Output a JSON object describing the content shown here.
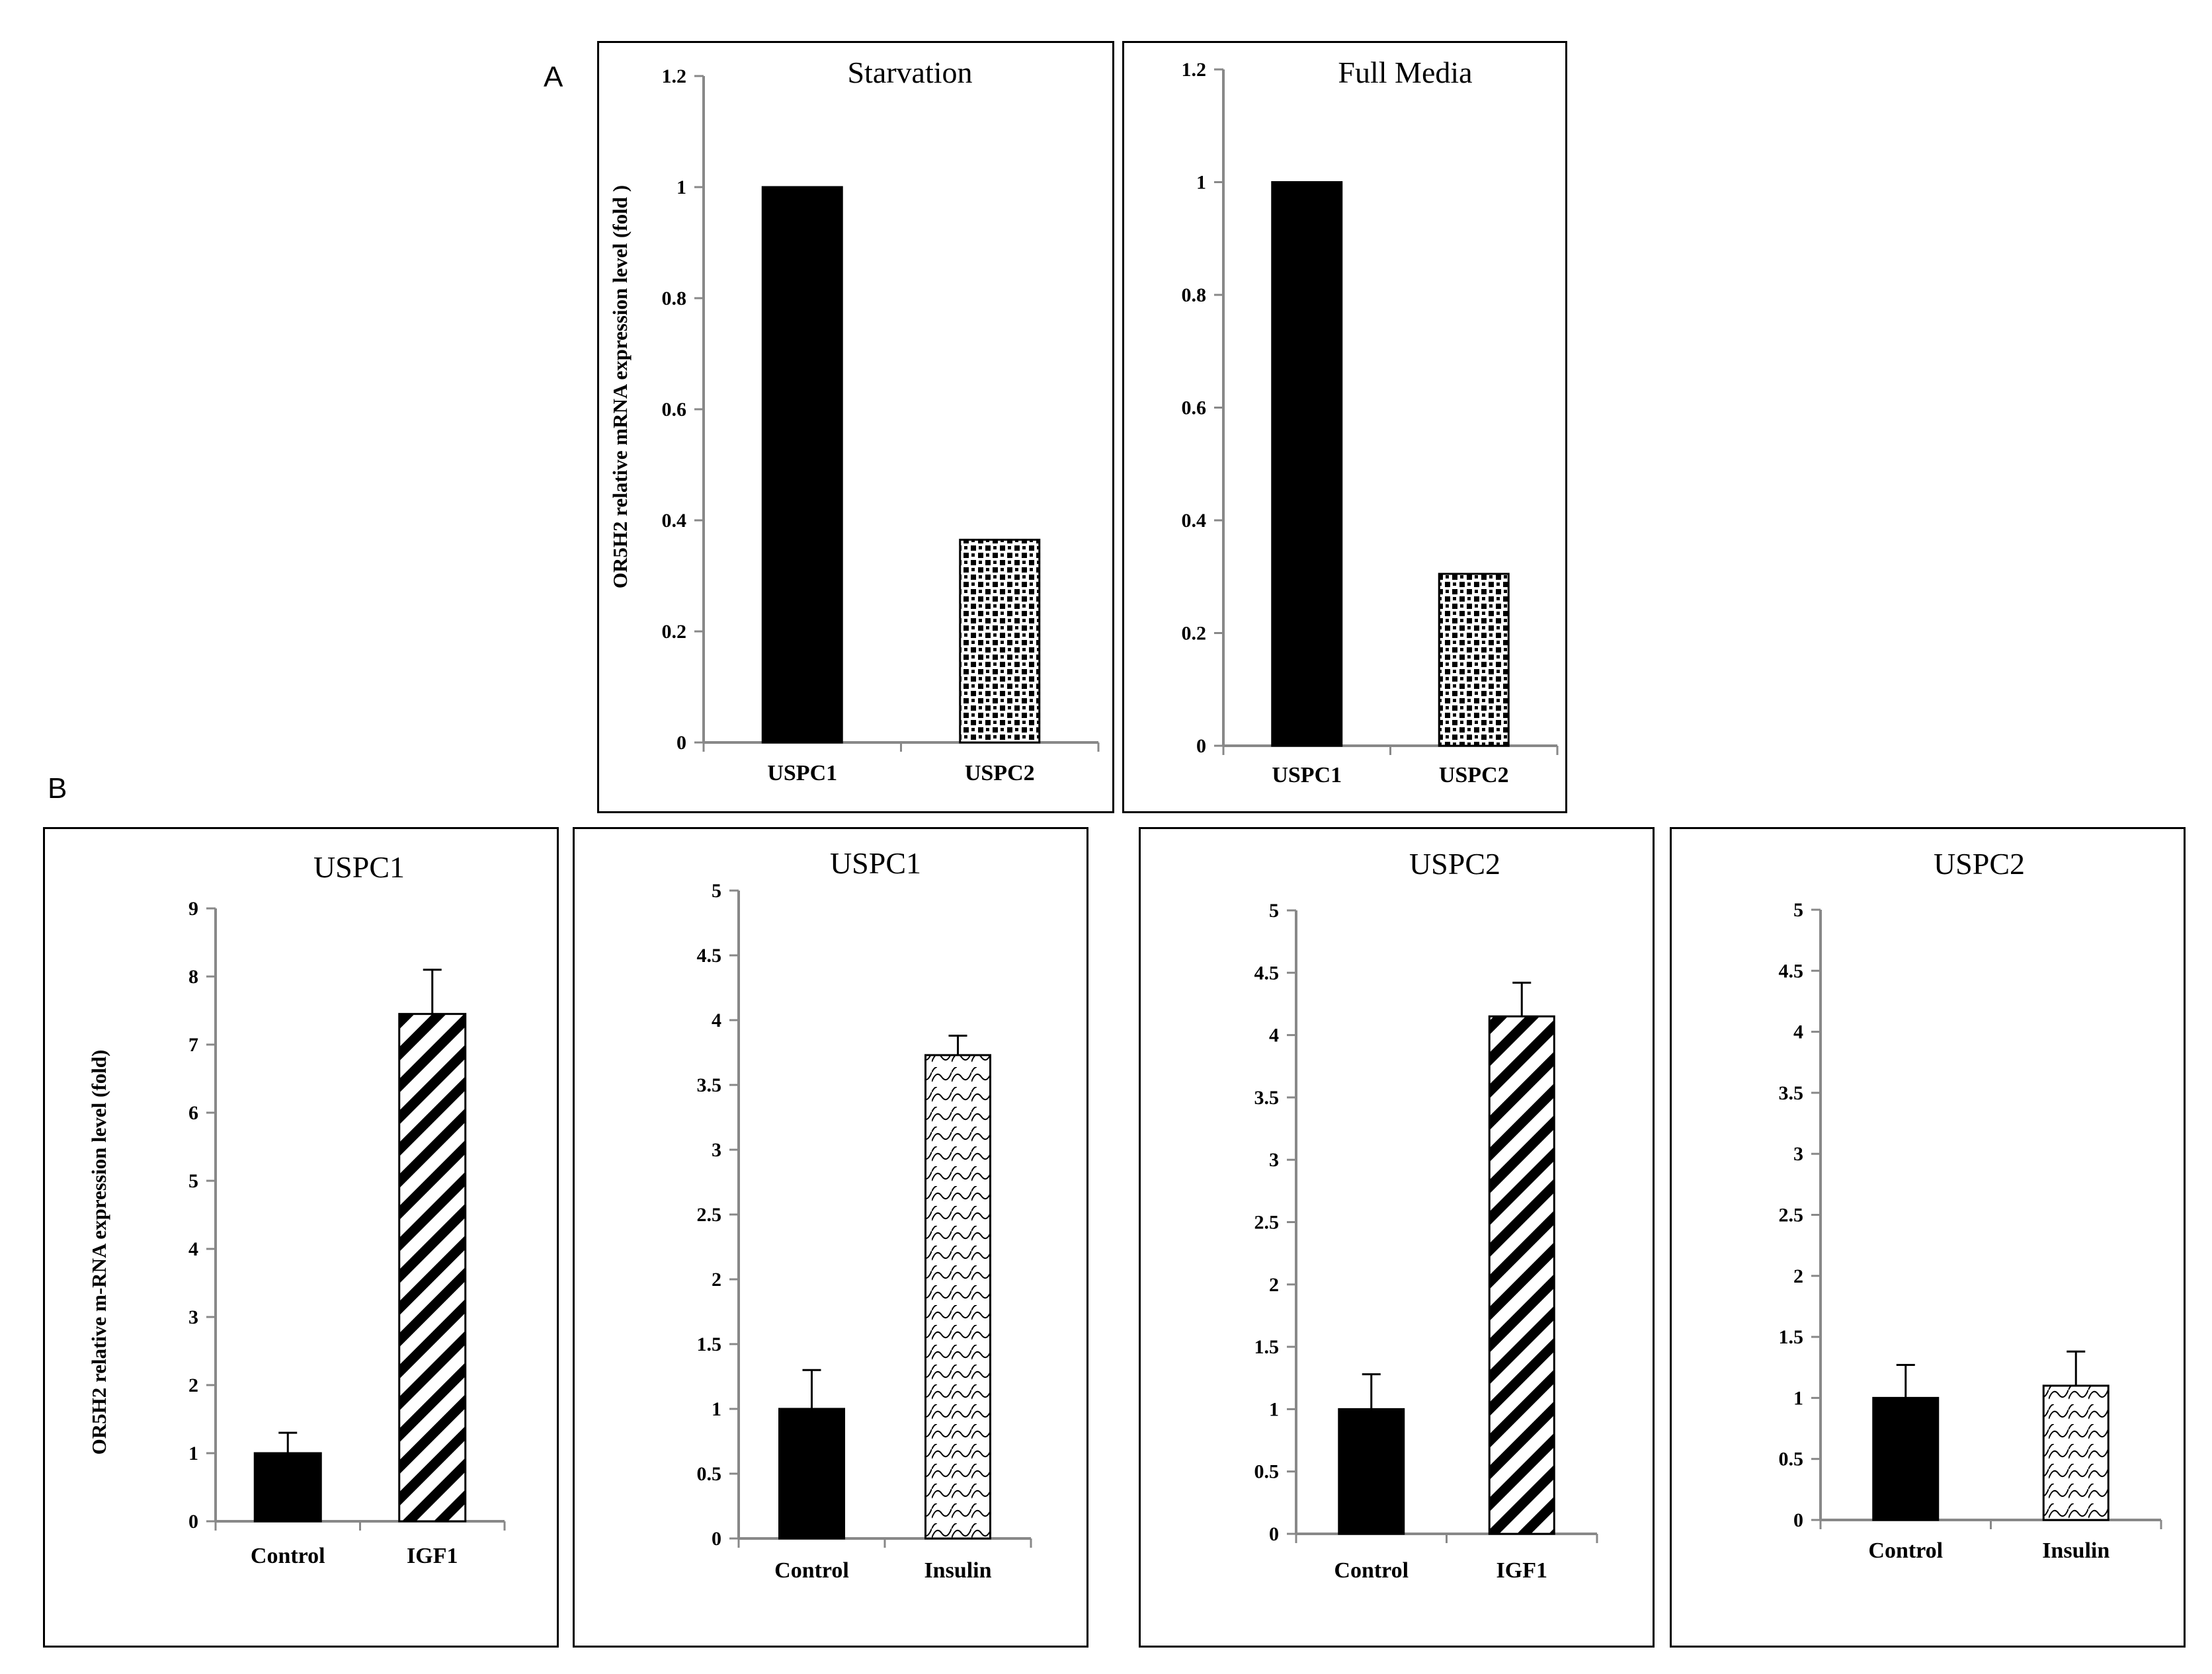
{
  "figure": {
    "panel_a_label": "A",
    "panel_b_label": "B"
  },
  "chart_data": [
    {
      "type": "bar",
      "panel": "A",
      "title": "Starvation",
      "ylabel": "OR5H2 relative mRNA expression level  (fold )",
      "xlabel": "",
      "categories": [
        "USPC1",
        "USPC2"
      ],
      "values": [
        1.0,
        0.365
      ],
      "errors": null,
      "patterns": [
        "solid",
        "dots"
      ],
      "ylim": [
        0,
        1.2
      ],
      "yticks": [
        0,
        0.2,
        0.4,
        0.6,
        0.8,
        1,
        1.2
      ],
      "yticklabels": [
        "0",
        "0.2",
        "0.4",
        "0.6",
        "0.8",
        "1",
        "1.2"
      ]
    },
    {
      "type": "bar",
      "panel": "A",
      "title": "Full Media",
      "ylabel": "",
      "xlabel": "",
      "categories": [
        "USPC1",
        "USPC2"
      ],
      "values": [
        1.0,
        0.305
      ],
      "errors": null,
      "patterns": [
        "solid",
        "dots"
      ],
      "ylim": [
        0,
        1.2
      ],
      "yticks": [
        0,
        0.2,
        0.4,
        0.6,
        0.8,
        1,
        1.2
      ],
      "yticklabels": [
        "0",
        "0.2",
        "0.4",
        "0.6",
        "0.8",
        "1",
        "1.2"
      ]
    },
    {
      "type": "bar",
      "panel": "B",
      "title": "USPC1",
      "ylabel": "OR5H2 relative m-RNA expression level (fold)",
      "xlabel": "",
      "categories": [
        "Control",
        "IGF1"
      ],
      "values": [
        1.0,
        7.45
      ],
      "errors": [
        0.3,
        0.65
      ],
      "patterns": [
        "solid",
        "diag"
      ],
      "ylim": [
        0,
        9
      ],
      "yticks": [
        0,
        1,
        2,
        3,
        4,
        5,
        6,
        7,
        8,
        9
      ],
      "yticklabels": [
        "0",
        "1",
        "2",
        "3",
        "4",
        "5",
        "6",
        "7",
        "8",
        "9"
      ]
    },
    {
      "type": "bar",
      "panel": "B",
      "title": "USPC1",
      "ylabel": "",
      "xlabel": "",
      "categories": [
        "Control",
        "Insulin"
      ],
      "values": [
        1.0,
        3.73
      ],
      "errors": [
        0.3,
        0.15
      ],
      "patterns": [
        "solid",
        "wave"
      ],
      "ylim": [
        0,
        5
      ],
      "yticks": [
        0,
        0.5,
        1,
        1.5,
        2,
        2.5,
        3,
        3.5,
        4,
        4.5,
        5
      ],
      "yticklabels": [
        "0",
        "0.5",
        "1",
        "1.5",
        "2",
        "2.5",
        "3",
        "3.5",
        "4",
        "4.5",
        "5"
      ]
    },
    {
      "type": "bar",
      "panel": "B",
      "title": "USPC2",
      "ylabel": "",
      "xlabel": "",
      "categories": [
        "Control",
        "IGF1"
      ],
      "values": [
        1.0,
        4.15
      ],
      "errors": [
        0.28,
        0.27
      ],
      "patterns": [
        "solid",
        "diag"
      ],
      "ylim": [
        0,
        5
      ],
      "yticks": [
        0,
        0.5,
        1,
        1.5,
        2,
        2.5,
        3,
        3.5,
        4,
        4.5,
        5
      ],
      "yticklabels": [
        "0",
        "0.5",
        "1",
        "1.5",
        "2",
        "2.5",
        "3",
        "3.5",
        "4",
        "4.5",
        "5"
      ]
    },
    {
      "type": "bar",
      "panel": "B",
      "title": "USPC2",
      "ylabel": "",
      "xlabel": "",
      "categories": [
        "Control",
        "Insulin"
      ],
      "values": [
        1.0,
        1.1
      ],
      "errors": [
        0.27,
        0.28
      ],
      "patterns": [
        "solid",
        "wave"
      ],
      "ylim": [
        0,
        5
      ],
      "yticks": [
        0,
        0.5,
        1,
        1.5,
        2,
        2.5,
        3,
        3.5,
        4,
        4.5,
        5
      ],
      "yticklabels": [
        "0",
        "0.5",
        "1",
        "1.5",
        "2",
        "2.5",
        "3",
        "3.5",
        "4",
        "4.5",
        "5"
      ]
    }
  ]
}
